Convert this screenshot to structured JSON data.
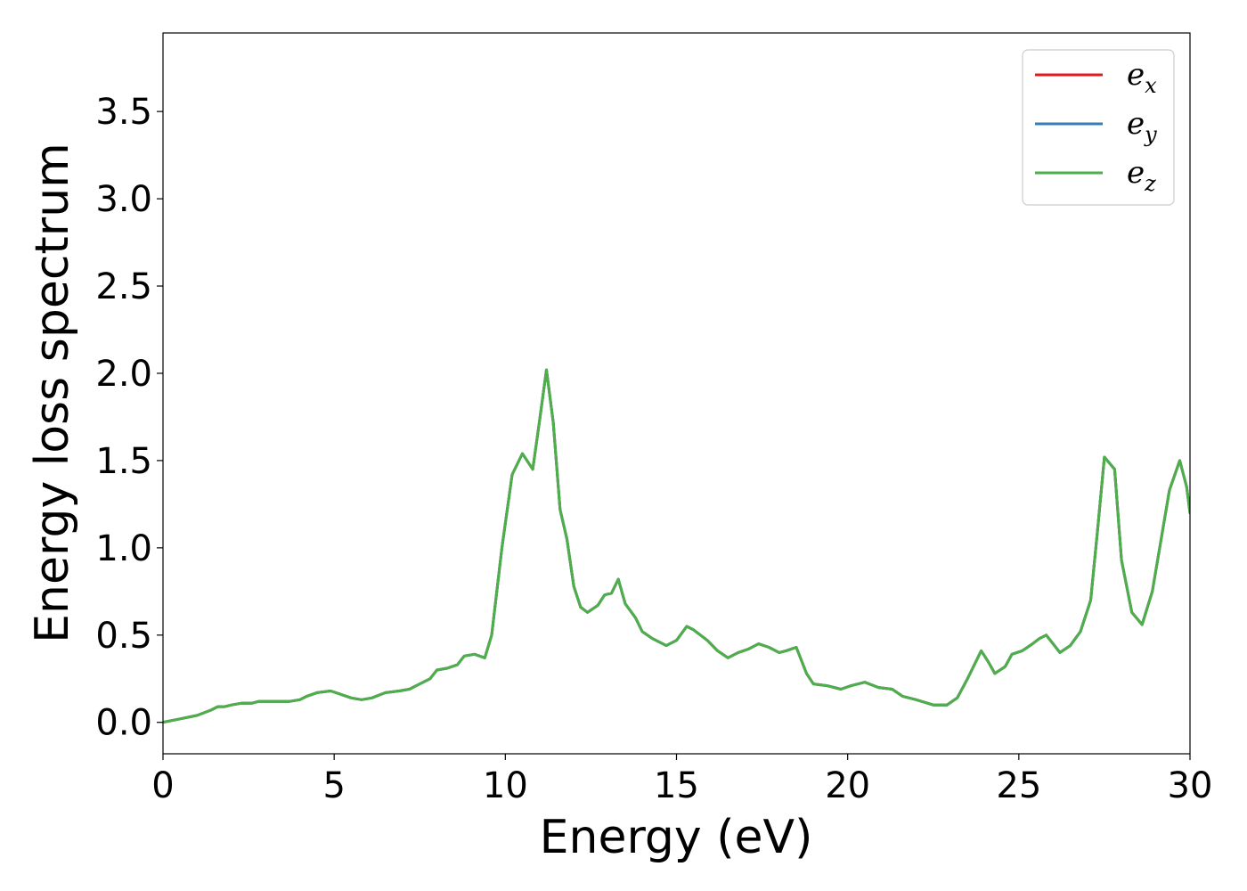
{
  "chart_data": {
    "type": "line",
    "xlabel": "Energy (eV)",
    "ylabel": "Energy loss spectrum",
    "xlim": [
      0,
      30
    ],
    "ylim": [
      -0.18,
      3.95
    ],
    "xticks": [
      0,
      5,
      10,
      15,
      20,
      25,
      30
    ],
    "xtick_labels": [
      "0",
      "5",
      "10",
      "15",
      "20",
      "25",
      "30"
    ],
    "yticks": [
      0.0,
      0.5,
      1.0,
      1.5,
      2.0,
      2.5,
      3.0,
      3.5
    ],
    "ytick_labels": [
      "0.0",
      "0.5",
      "1.0",
      "1.5",
      "2.0",
      "2.5",
      "3.0",
      "3.5"
    ],
    "grid": false,
    "legend_position": "top-right",
    "legend": [
      {
        "base": "e",
        "sub": "x",
        "color": "#e41a1c"
      },
      {
        "base": "e",
        "sub": "y",
        "color": "#377eb8"
      },
      {
        "base": "e",
        "sub": "z",
        "color": "#4daf4a"
      }
    ],
    "x": [
      0,
      0.5,
      1.0,
      1.4,
      1.6,
      1.8,
      2.0,
      2.3,
      2.6,
      2.8,
      3.0,
      3.2,
      3.5,
      3.7,
      4.0,
      4.2,
      4.5,
      4.9,
      5.2,
      5.5,
      5.8,
      6.1,
      6.5,
      6.9,
      7.2,
      7.5,
      7.8,
      8.0,
      8.3,
      8.6,
      8.8,
      9.1,
      9.4,
      9.6,
      9.9,
      10.2,
      10.5,
      10.8,
      11.0,
      11.2,
      11.4,
      11.6,
      11.8,
      12.0,
      12.2,
      12.4,
      12.7,
      12.9,
      13.1,
      13.3,
      13.5,
      13.8,
      14.0,
      14.3,
      14.7,
      15.0,
      15.3,
      15.5,
      15.9,
      16.2,
      16.5,
      16.8,
      17.1,
      17.4,
      17.7,
      18.0,
      18.2,
      18.5,
      18.8,
      19.0,
      19.4,
      19.8,
      20.1,
      20.5,
      20.9,
      21.3,
      21.6,
      22.0,
      22.5,
      22.9,
      23.2,
      23.5,
      23.9,
      24.1,
      24.3,
      24.6,
      24.8,
      25.1,
      25.4,
      25.6,
      25.8,
      26.0,
      26.2,
      26.5,
      26.8,
      27.1,
      27.3,
      27.5,
      27.8,
      28.0,
      28.3,
      28.6,
      28.9,
      29.2,
      29.4,
      29.7,
      29.9,
      30.0
    ],
    "series": [
      {
        "name": "e_x",
        "color": "#e41a1c",
        "values": [
          0.0,
          0.02,
          0.04,
          0.07,
          0.09,
          0.09,
          0.1,
          0.11,
          0.11,
          0.12,
          0.12,
          0.12,
          0.12,
          0.12,
          0.13,
          0.15,
          0.17,
          0.18,
          0.16,
          0.14,
          0.13,
          0.14,
          0.17,
          0.18,
          0.19,
          0.22,
          0.25,
          0.3,
          0.31,
          0.33,
          0.38,
          0.39,
          0.37,
          0.5,
          1.0,
          1.42,
          1.54,
          1.45,
          1.73,
          2.02,
          1.72,
          1.22,
          1.05,
          0.78,
          0.66,
          0.63,
          0.67,
          0.73,
          0.74,
          0.82,
          0.68,
          0.6,
          0.52,
          0.48,
          0.44,
          0.47,
          0.55,
          0.53,
          0.47,
          0.41,
          0.37,
          0.4,
          0.42,
          0.45,
          0.43,
          0.4,
          0.41,
          0.43,
          0.28,
          0.22,
          0.21,
          0.19,
          0.21,
          0.23,
          0.2,
          0.19,
          0.15,
          0.13,
          0.1,
          0.1,
          0.14,
          0.25,
          0.41,
          0.35,
          0.28,
          0.32,
          0.39,
          0.41,
          0.45,
          0.48,
          0.5,
          0.45,
          0.4,
          0.44,
          0.52,
          0.7,
          1.1,
          1.52,
          1.45,
          0.93,
          0.63,
          0.56,
          0.75,
          1.1,
          1.33,
          1.5,
          1.35,
          1.2
        ]
      },
      {
        "name": "e_y",
        "color": "#377eb8",
        "values": [
          0.0,
          0.02,
          0.04,
          0.07,
          0.09,
          0.09,
          0.1,
          0.11,
          0.11,
          0.12,
          0.12,
          0.12,
          0.12,
          0.12,
          0.13,
          0.15,
          0.17,
          0.18,
          0.16,
          0.14,
          0.13,
          0.14,
          0.17,
          0.18,
          0.19,
          0.22,
          0.25,
          0.3,
          0.31,
          0.33,
          0.38,
          0.39,
          0.37,
          0.5,
          1.0,
          1.42,
          1.54,
          1.45,
          1.73,
          2.02,
          1.72,
          1.22,
          1.05,
          0.78,
          0.66,
          0.63,
          0.67,
          0.73,
          0.74,
          0.82,
          0.68,
          0.6,
          0.52,
          0.48,
          0.44,
          0.47,
          0.55,
          0.53,
          0.47,
          0.41,
          0.37,
          0.4,
          0.42,
          0.45,
          0.43,
          0.4,
          0.41,
          0.43,
          0.28,
          0.22,
          0.21,
          0.19,
          0.21,
          0.23,
          0.2,
          0.19,
          0.15,
          0.13,
          0.1,
          0.1,
          0.14,
          0.25,
          0.41,
          0.35,
          0.28,
          0.32,
          0.39,
          0.41,
          0.45,
          0.48,
          0.5,
          0.45,
          0.4,
          0.44,
          0.52,
          0.7,
          1.1,
          1.52,
          1.45,
          0.93,
          0.63,
          0.56,
          0.75,
          1.1,
          1.33,
          1.5,
          1.35,
          1.2
        ]
      },
      {
        "name": "e_z",
        "color": "#4daf4a",
        "values": [
          0.0,
          0.02,
          0.04,
          0.07,
          0.09,
          0.09,
          0.1,
          0.11,
          0.11,
          0.12,
          0.12,
          0.12,
          0.12,
          0.12,
          0.13,
          0.15,
          0.17,
          0.18,
          0.16,
          0.14,
          0.13,
          0.14,
          0.17,
          0.18,
          0.19,
          0.22,
          0.25,
          0.3,
          0.31,
          0.33,
          0.38,
          0.39,
          0.37,
          0.5,
          1.0,
          1.42,
          1.54,
          1.45,
          1.73,
          2.02,
          1.72,
          1.22,
          1.05,
          0.78,
          0.66,
          0.63,
          0.67,
          0.73,
          0.74,
          0.82,
          0.68,
          0.6,
          0.52,
          0.48,
          0.44,
          0.47,
          0.55,
          0.53,
          0.47,
          0.41,
          0.37,
          0.4,
          0.42,
          0.45,
          0.43,
          0.4,
          0.41,
          0.43,
          0.28,
          0.22,
          0.21,
          0.19,
          0.21,
          0.23,
          0.2,
          0.19,
          0.15,
          0.13,
          0.1,
          0.1,
          0.14,
          0.25,
          0.41,
          0.35,
          0.28,
          0.32,
          0.39,
          0.41,
          0.45,
          0.48,
          0.5,
          0.45,
          0.4,
          0.44,
          0.52,
          0.7,
          1.1,
          1.52,
          1.45,
          0.93,
          0.63,
          0.56,
          0.75,
          1.1,
          1.33,
          1.5,
          1.35,
          1.2
        ]
      }
    ]
  }
}
